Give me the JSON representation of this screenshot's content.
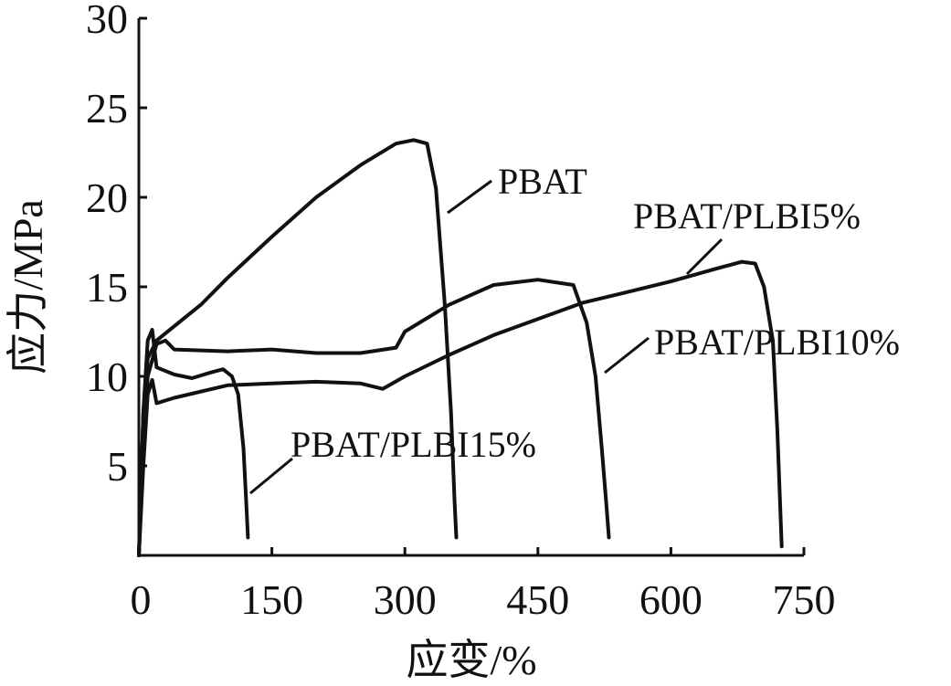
{
  "chart_data": {
    "type": "line",
    "xlabel": "应变/%",
    "ylabel": "应力/MPa",
    "xlim": [
      0,
      750
    ],
    "ylim": [
      0,
      30
    ],
    "xticks": [
      0,
      150,
      300,
      450,
      600,
      750
    ],
    "yticks": [
      5,
      10,
      15,
      20,
      25,
      30
    ],
    "grid": false,
    "legend": "none",
    "series": [
      {
        "name": "PBAT",
        "x": [
          0,
          5,
          10,
          20,
          40,
          70,
          100,
          150,
          200,
          250,
          290,
          310,
          325,
          335,
          345,
          352,
          356,
          358
        ],
        "y": [
          0,
          8,
          11,
          12,
          12.8,
          14,
          15.5,
          17.8,
          20,
          21.8,
          23,
          23.2,
          23,
          20.5,
          14,
          8,
          3,
          1
        ]
      },
      {
        "name": "PBAT/PLBI5%",
        "x": [
          0,
          5,
          10,
          15,
          20,
          40,
          100,
          150,
          200,
          250,
          275,
          300,
          350,
          400,
          450,
          500,
          550,
          600,
          650,
          680,
          695,
          705,
          715,
          720,
          725
        ],
        "y": [
          0,
          5,
          9,
          9.8,
          8.5,
          8.8,
          9.5,
          9.6,
          9.7,
          9.6,
          9.3,
          10,
          11.2,
          12.3,
          13.2,
          14.1,
          14.7,
          15.3,
          16,
          16.4,
          16.3,
          15,
          12,
          7,
          0.5
        ]
      },
      {
        "name": "PBAT/PLBI10%",
        "x": [
          0,
          5,
          10,
          20,
          30,
          40,
          100,
          150,
          200,
          250,
          290,
          300,
          350,
          400,
          450,
          490,
          505,
          515,
          522,
          527,
          530
        ],
        "y": [
          0,
          6,
          10,
          11.8,
          12,
          11.5,
          11.4,
          11.5,
          11.3,
          11.3,
          11.6,
          12.5,
          14,
          15.1,
          15.4,
          15.1,
          13,
          10,
          6,
          3,
          1
        ]
      },
      {
        "name": "PBAT/PLBI15%",
        "x": [
          0,
          5,
          10,
          15,
          20,
          40,
          60,
          80,
          95,
          105,
          112,
          118,
          121,
          123
        ],
        "y": [
          0,
          8,
          12,
          12.6,
          10.5,
          10.1,
          9.9,
          10.2,
          10.4,
          10,
          9,
          6,
          3,
          1
        ]
      }
    ],
    "annotations": [
      "PBAT",
      "PBAT/PLBI5%",
      "PBAT/PLBI10%",
      "PBAT/PLBI15%"
    ]
  }
}
